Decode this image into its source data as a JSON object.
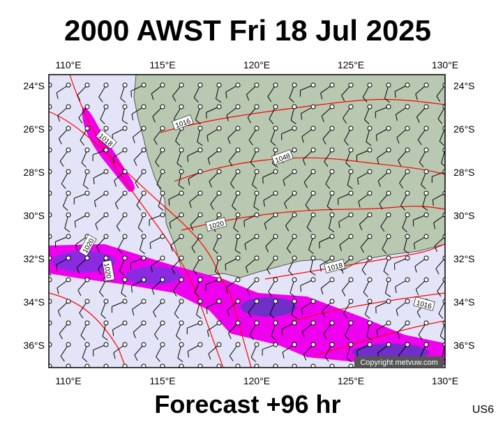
{
  "header": {
    "title": "2000 AWST Fri 18 Jul 2025"
  },
  "map": {
    "lon_labels": [
      "110°E",
      "115°E",
      "120°E",
      "125°E",
      "130°E"
    ],
    "lat_labels": [
      "24°S",
      "26°S",
      "28°S",
      "30°S",
      "32°S",
      "34°S",
      "36°S"
    ],
    "isobar_labels": [
      "1016",
      "1018",
      "1048",
      "1020",
      "1020",
      "1020",
      "1018",
      "1016"
    ],
    "copyright": "Copyright metvuw.com"
  },
  "footer": {
    "forecast": "Forecast +96 hr",
    "code": "US6"
  }
}
